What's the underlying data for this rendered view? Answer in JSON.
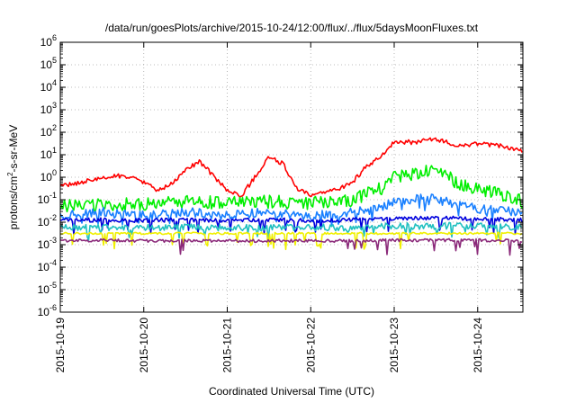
{
  "chart_data": {
    "type": "line",
    "title": "/data/run/goesPlots/archive/2015-10-24/12:00/flux/../flux/5daysMoonFluxes.txt",
    "xlabel": "Coordinated Universal Time (UTC)",
    "ylabel_main": "protons/cm",
    "ylabel_sup": "2",
    "ylabel_tail": "-s-sr-MeV",
    "x_ticks": [
      "2015-10-19",
      "2015-10-20",
      "2015-10-21",
      "2015-10-22",
      "2015-10-23",
      "2015-10-24"
    ],
    "xlim": [
      "2015-10-19T00:00",
      "2015-10-24T13:00"
    ],
    "y_scale": "log",
    "ylim": [
      1e-06,
      1000000.0
    ],
    "y_ticks": [
      {
        "base": "10",
        "exp": "-6"
      },
      {
        "base": "10",
        "exp": "-5"
      },
      {
        "base": "10",
        "exp": "-4"
      },
      {
        "base": "10",
        "exp": "-3"
      },
      {
        "base": "10",
        "exp": "-2"
      },
      {
        "base": "10",
        "exp": "-1"
      },
      {
        "base": "10",
        "exp": "0"
      },
      {
        "base": "10",
        "exp": "1"
      },
      {
        "base": "10",
        "exp": "2"
      },
      {
        "base": "10",
        "exp": "3"
      },
      {
        "base": "10",
        "exp": "4"
      },
      {
        "base": "10",
        "exp": "5"
      },
      {
        "base": "10",
        "exp": "6"
      }
    ],
    "grid": true,
    "series": [
      {
        "color": "#ff0000",
        "x": [
          "2015-10-19T00:00",
          "2015-10-19T06:00",
          "2015-10-19T12:00",
          "2015-10-19T18:00",
          "2015-10-20T00:00",
          "2015-10-20T04:00",
          "2015-10-20T08:00",
          "2015-10-20T12:00",
          "2015-10-20T16:00",
          "2015-10-20T20:00",
          "2015-10-21T00:00",
          "2015-10-21T04:00",
          "2015-10-21T08:00",
          "2015-10-21T12:00",
          "2015-10-21T16:00",
          "2015-10-21T20:00",
          "2015-10-22T00:00",
          "2015-10-22T04:00",
          "2015-10-22T08:00",
          "2015-10-22T12:00",
          "2015-10-22T16:00",
          "2015-10-22T20:00",
          "2015-10-23T00:00",
          "2015-10-23T06:00",
          "2015-10-23T12:00",
          "2015-10-23T18:00",
          "2015-10-24T00:00",
          "2015-10-24T06:00",
          "2015-10-24T13:00"
        ],
        "y": [
          0.4,
          0.6,
          0.9,
          1.2,
          0.6,
          0.25,
          0.5,
          2,
          5,
          1.2,
          0.25,
          0.15,
          1,
          8,
          4,
          0.3,
          0.15,
          0.2,
          0.3,
          0.6,
          3,
          8,
          40,
          35,
          50,
          25,
          30,
          25,
          15
        ]
      },
      {
        "color": "#00ee00",
        "x": [
          "2015-10-19T00:00",
          "2015-10-19T12:00",
          "2015-10-20T00:00",
          "2015-10-20T12:00",
          "2015-10-21T00:00",
          "2015-10-21T12:00",
          "2015-10-22T00:00",
          "2015-10-22T12:00",
          "2015-10-22T20:00",
          "2015-10-23T00:00",
          "2015-10-23T06:00",
          "2015-10-23T12:00",
          "2015-10-23T18:00",
          "2015-10-24T00:00",
          "2015-10-24T06:00",
          "2015-10-24T13:00"
        ],
        "y": [
          0.05,
          0.06,
          0.06,
          0.08,
          0.07,
          0.08,
          0.07,
          0.1,
          0.3,
          1,
          1.5,
          2,
          0.6,
          0.3,
          0.2,
          0.08
        ]
      },
      {
        "color": "#1a80ff",
        "x": [
          "2015-10-19T00:00",
          "2015-10-19T12:00",
          "2015-10-20T00:00",
          "2015-10-20T12:00",
          "2015-10-21T00:00",
          "2015-10-21T12:00",
          "2015-10-22T00:00",
          "2015-10-22T12:00",
          "2015-10-22T20:00",
          "2015-10-23T00:00",
          "2015-10-23T12:00",
          "2015-10-23T18:00",
          "2015-10-24T00:00",
          "2015-10-24T13:00"
        ],
        "y": [
          0.02,
          0.03,
          0.02,
          0.03,
          0.02,
          0.03,
          0.02,
          0.03,
          0.04,
          0.1,
          0.12,
          0.06,
          0.04,
          0.03
        ]
      },
      {
        "color": "#0000dd",
        "x": [
          "2015-10-19T00:00",
          "2015-10-19T12:00",
          "2015-10-20T00:00",
          "2015-10-20T12:00",
          "2015-10-21T00:00",
          "2015-10-21T12:00",
          "2015-10-22T00:00",
          "2015-10-22T12:00",
          "2015-10-23T00:00",
          "2015-10-23T12:00",
          "2015-10-24T00:00",
          "2015-10-24T13:00"
        ],
        "y": [
          0.012,
          0.013,
          0.012,
          0.013,
          0.012,
          0.013,
          0.012,
          0.013,
          0.015,
          0.016,
          0.014,
          0.013
        ]
      },
      {
        "color": "#20c0c0",
        "x": [
          "2015-10-19T00:00",
          "2015-10-19T12:00",
          "2015-10-20T00:00",
          "2015-10-20T12:00",
          "2015-10-21T00:00",
          "2015-10-21T12:00",
          "2015-10-22T00:00",
          "2015-10-22T12:00",
          "2015-10-23T00:00",
          "2015-10-23T12:00",
          "2015-10-24T00:00",
          "2015-10-24T13:00"
        ],
        "y": [
          0.006,
          0.006,
          0.006,
          0.006,
          0.006,
          0.006,
          0.006,
          0.006,
          0.007,
          0.007,
          0.007,
          0.006
        ]
      },
      {
        "color": "#f0f000",
        "x": [
          "2015-10-19T00:00",
          "2015-10-19T12:00",
          "2015-10-20T00:00",
          "2015-10-20T12:00",
          "2015-10-21T00:00",
          "2015-10-21T12:00",
          "2015-10-22T00:00",
          "2015-10-22T12:00",
          "2015-10-23T00:00",
          "2015-10-23T12:00",
          "2015-10-24T00:00",
          "2015-10-24T13:00"
        ],
        "y": [
          0.0032,
          0.0032,
          0.0032,
          0.0032,
          0.0032,
          0.0032,
          0.0032,
          0.0032,
          0.0032,
          0.0032,
          0.0032,
          0.0032
        ]
      },
      {
        "color": "#8b2a7a",
        "x": [
          "2015-10-19T00:00",
          "2015-10-19T12:00",
          "2015-10-20T00:00",
          "2015-10-20T12:00",
          "2015-10-21T00:00",
          "2015-10-21T12:00",
          "2015-10-22T00:00",
          "2015-10-22T12:00",
          "2015-10-23T00:00",
          "2015-10-23T12:00",
          "2015-10-24T00:00",
          "2015-10-24T13:00"
        ],
        "y": [
          0.0015,
          0.0016,
          0.0015,
          0.0015,
          0.0015,
          0.0015,
          0.0015,
          0.0015,
          0.0016,
          0.0016,
          0.0016,
          0.0015
        ]
      }
    ]
  }
}
